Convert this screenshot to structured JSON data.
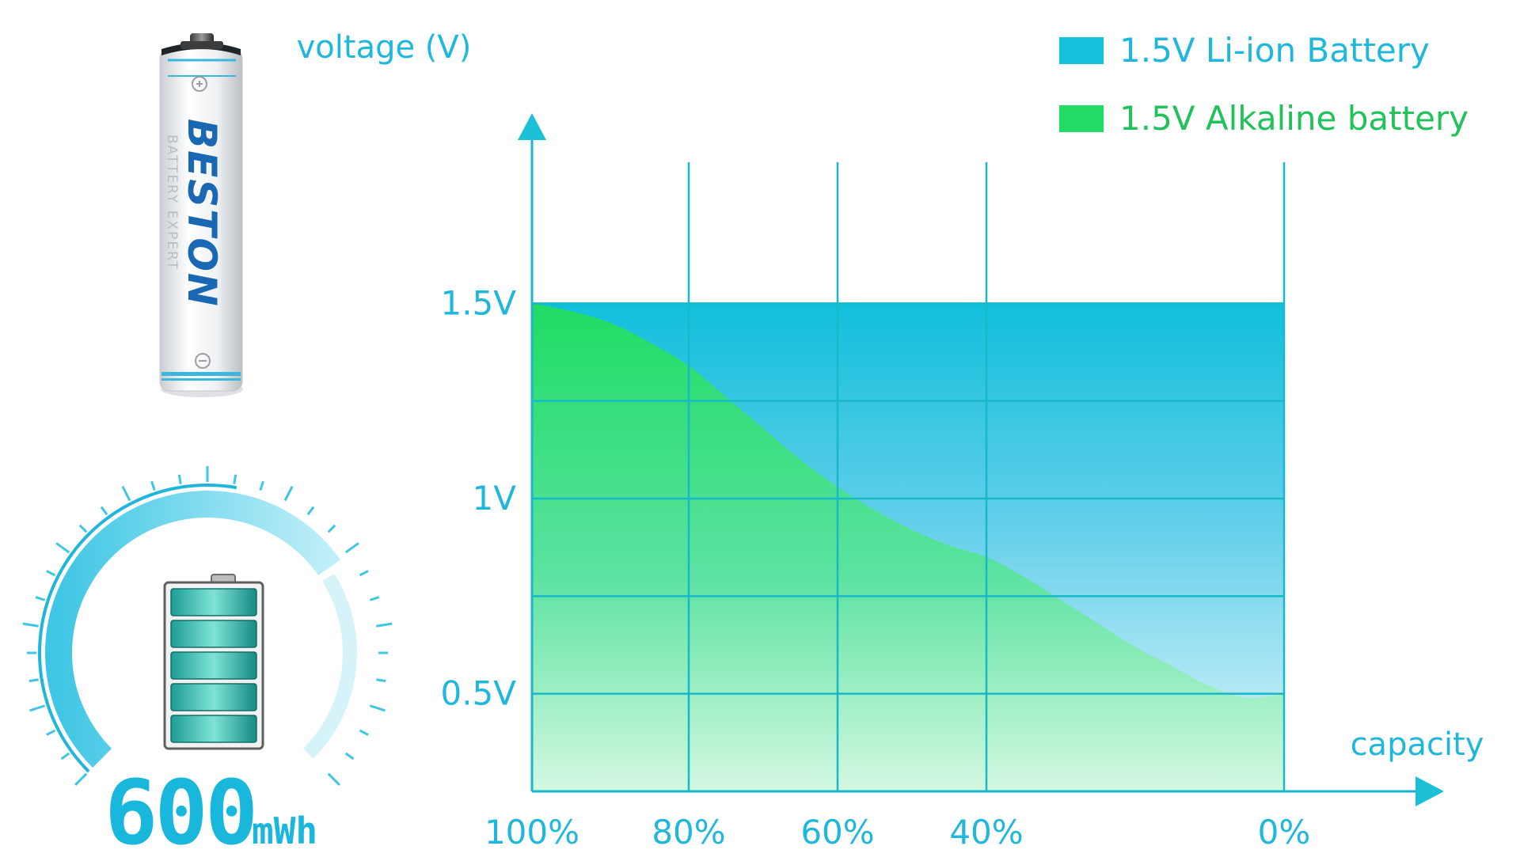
{
  "chart_data": {
    "type": "area",
    "ylabel": "voltage (V)",
    "xlabel": "capacity",
    "x_ticks": [
      "100%",
      "80%",
      "60%",
      "40%",
      "0%"
    ],
    "y_ticks": [
      "1.5V",
      "1V",
      "0.5V"
    ],
    "ylim": [
      0.25,
      1.75
    ],
    "grid": true,
    "legend_position": "top-right",
    "series": [
      {
        "name": "1.5V Li-ion Battery",
        "color": "#15c1dc",
        "x": [
          "100%",
          "80%",
          "60%",
          "40%",
          "0%"
        ],
        "y": [
          1.5,
          1.5,
          1.5,
          1.5,
          1.5
        ]
      },
      {
        "name": "1.5V Alkaline battery",
        "color": "#22dc66",
        "x": [
          "100%",
          "95%",
          "90%",
          "85%",
          "80%",
          "75%",
          "70%",
          "65%",
          "60%",
          "55%",
          "50%",
          "45%",
          "40%",
          "35%",
          "30%",
          "25%",
          "20%",
          "15%",
          "10%",
          "5%",
          "0%"
        ],
        "y": [
          1.5,
          1.48,
          1.45,
          1.4,
          1.34,
          1.26,
          1.18,
          1.1,
          1.03,
          0.97,
          0.92,
          0.88,
          0.85,
          0.8,
          0.74,
          0.68,
          0.62,
          0.57,
          0.52,
          0.49,
          0.5
        ]
      }
    ]
  },
  "product": {
    "brand": "BESTON",
    "tagline": "BATTERY EXPERT",
    "energy_value": "600",
    "energy_unit": "mWh"
  },
  "icons": {
    "battery_cell": "aa-battery-icon",
    "charge_level": "battery-level-icon",
    "gauge": "capacity-gauge-icon"
  }
}
